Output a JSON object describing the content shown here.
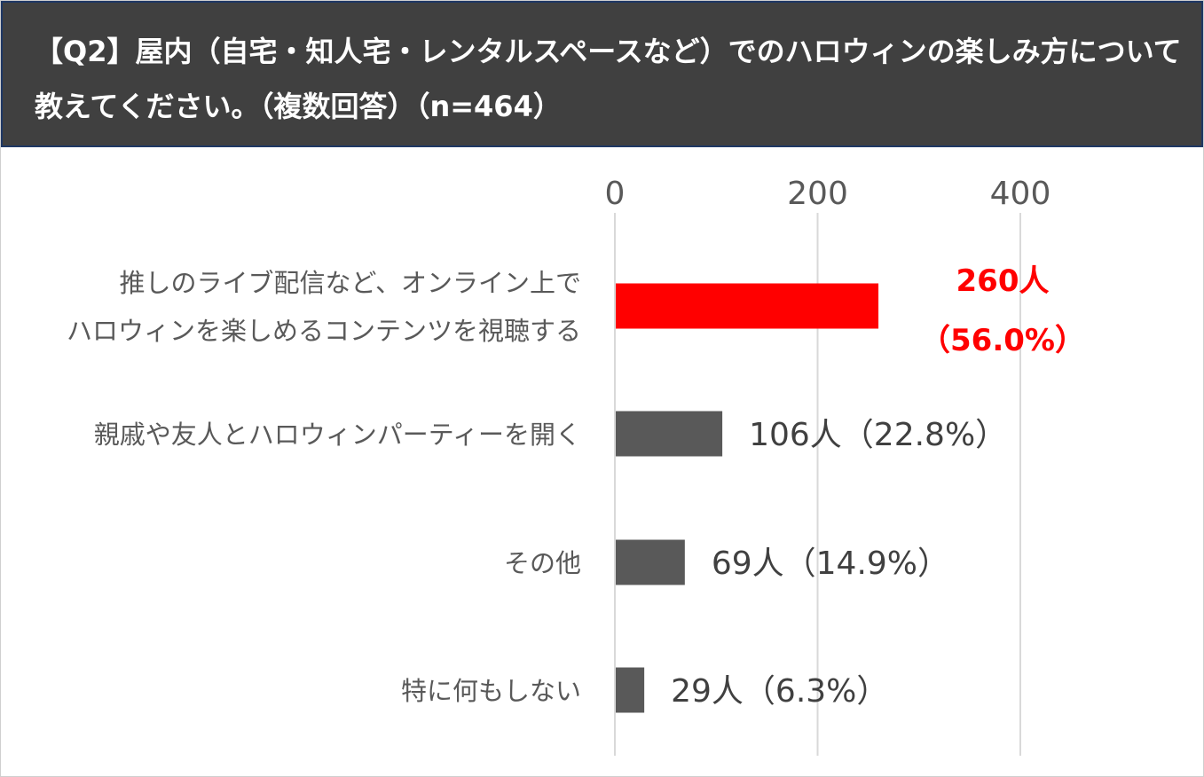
{
  "header": {
    "title_line_1": "【Q2】屋内（自宅・知人宅・レンタルスペースなど）でのハロウィンの楽しみ方について",
    "title_line_2": "教えてください。（複数回答）（n=464）"
  },
  "colors": {
    "header_bg": "#404040",
    "header_border": "#1f3864",
    "highlight": "#ff0000",
    "bar_default": "#595959",
    "gridline": "#d9d9d9",
    "text": "#595959"
  },
  "chart_data": {
    "type": "bar",
    "orientation": "horizontal",
    "xlim": [
      0,
      400
    ],
    "xticks": [
      0,
      200,
      400
    ],
    "xtick_labels": [
      "0",
      "200",
      "400"
    ],
    "axis_position": "top",
    "grid": true,
    "categories": [
      [
        "推しのライブ配信など、オンライン上で",
        "ハロウィンを楽しめるコンテンツを視聴する"
      ],
      [
        "親戚や友人とハロウィンパーティーを開く"
      ],
      [
        "その他"
      ],
      [
        "特に何もしない"
      ]
    ],
    "values": [
      260,
      106,
      69,
      29
    ],
    "data_labels": [
      [
        "260人",
        "（56.0%）"
      ],
      [
        "106人（22.8%）"
      ],
      [
        "69人（14.9%）"
      ],
      [
        "29人（6.3%）"
      ]
    ],
    "highlight_index": 0
  }
}
